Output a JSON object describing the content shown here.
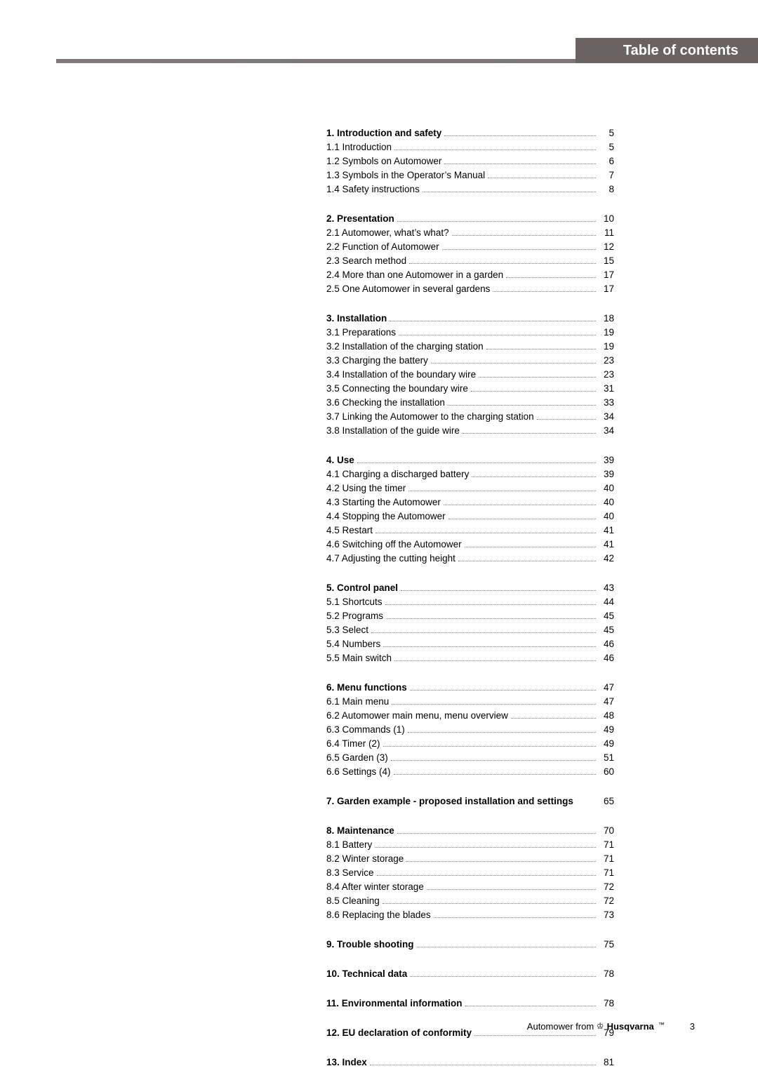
{
  "header": {
    "title": "Table of contents"
  },
  "toc": [
    {
      "entries": [
        {
          "label": "1. Introduction and safety",
          "page": "5",
          "bold": true
        },
        {
          "label": "1.1 Introduction",
          "page": "5"
        },
        {
          "label": "1.2 Symbols on Automower",
          "page": "6"
        },
        {
          "label": "1.3 Symbols in the Operator’s Manual",
          "page": "7"
        },
        {
          "label": "1.4 Safety instructions",
          "page": "8"
        }
      ]
    },
    {
      "entries": [
        {
          "label": "2. Presentation",
          "page": "10",
          "bold": true
        },
        {
          "label": "2.1 Automower, what’s what?",
          "page": "11"
        },
        {
          "label": "2.2 Function of Automower",
          "page": "12"
        },
        {
          "label": "2.3 Search method",
          "page": "15"
        },
        {
          "label": "2.4 More than one Automower in a garden",
          "page": "17"
        },
        {
          "label": "2.5 One Automower in several gardens",
          "page": "17"
        }
      ]
    },
    {
      "entries": [
        {
          "label": "3. Installation",
          "page": "18",
          "bold": true
        },
        {
          "label": "3.1 Preparations",
          "page": "19"
        },
        {
          "label": "3.2 Installation of the charging station",
          "page": "19"
        },
        {
          "label": "3.3 Charging the battery",
          "page": "23"
        },
        {
          "label": "3.4 Installation of the boundary wire",
          "page": "23"
        },
        {
          "label": "3.5 Connecting the boundary wire",
          "page": "31"
        },
        {
          "label": "3.6 Checking the installation",
          "page": "33"
        },
        {
          "label": "3.7 Linking the Automower to the charging station",
          "page": "34"
        },
        {
          "label": "3.8 Installation of the guide wire",
          "page": "34"
        }
      ]
    },
    {
      "entries": [
        {
          "label": "4. Use",
          "page": "39",
          "bold": true
        },
        {
          "label": "4.1 Charging a discharged battery",
          "page": "39"
        },
        {
          "label": "4.2 Using the timer",
          "page": "40"
        },
        {
          "label": "4.3 Starting the Automower",
          "page": "40"
        },
        {
          "label": "4.4 Stopping the Automower",
          "page": "40"
        },
        {
          "label": "4.5 Restart",
          "page": "41"
        },
        {
          "label": "4.6 Switching off the Automower",
          "page": "41"
        },
        {
          "label": "4.7 Adjusting the cutting height",
          "page": "42"
        }
      ]
    },
    {
      "entries": [
        {
          "label": "5. Control panel",
          "page": "43",
          "bold": true
        },
        {
          "label": "5.1 Shortcuts",
          "page": "44"
        },
        {
          "label": "5.2 Programs",
          "page": "45"
        },
        {
          "label": "5.3 Select",
          "page": "45"
        },
        {
          "label": "5.4 Numbers",
          "page": "46"
        },
        {
          "label": "5.5 Main switch",
          "page": "46"
        }
      ]
    },
    {
      "entries": [
        {
          "label": "6. Menu functions",
          "page": "47",
          "bold": true
        },
        {
          "label": "6.1 Main menu",
          "page": "47"
        },
        {
          "label": "6.2 Automower main menu, menu overview",
          "page": "48"
        },
        {
          "label": "6.3 Commands (1)",
          "page": "49"
        },
        {
          "label": "6.4 Timer (2)",
          "page": "49"
        },
        {
          "label": "6.5 Garden (3)",
          "page": "51"
        },
        {
          "label": "6.6 Settings (4)",
          "page": "60"
        }
      ]
    },
    {
      "entries": [
        {
          "label": "7. Garden example - proposed installation and settings",
          "page": "65",
          "bold": true,
          "nodots": true
        }
      ]
    },
    {
      "entries": [
        {
          "label": "8. Maintenance",
          "page": "70",
          "bold": true
        },
        {
          "label": "8.1 Battery",
          "page": "71"
        },
        {
          "label": "8.2 Winter storage",
          "page": "71"
        },
        {
          "label": "8.3 Service",
          "page": "71"
        },
        {
          "label": "8.4 After winter storage",
          "page": "72"
        },
        {
          "label": "8.5 Cleaning",
          "page": "72"
        },
        {
          "label": "8.6 Replacing the blades",
          "page": "73"
        }
      ]
    },
    {
      "entries": [
        {
          "label": "9. Trouble shooting",
          "page": "75",
          "bold": true
        }
      ]
    },
    {
      "entries": [
        {
          "label": "10. Technical data",
          "page": "78",
          "bold": true
        }
      ]
    },
    {
      "entries": [
        {
          "label": "11. Environmental information",
          "page": "78",
          "bold": true
        }
      ]
    },
    {
      "entries": [
        {
          "label": "12. EU declaration of conformity",
          "page": "79",
          "bold": true
        }
      ]
    },
    {
      "entries": [
        {
          "label": "13. Index",
          "page": "81",
          "bold": true
        }
      ]
    }
  ],
  "footer": {
    "prefix": "Automower from",
    "brand": "Husqvarna",
    "page_number": "3"
  }
}
